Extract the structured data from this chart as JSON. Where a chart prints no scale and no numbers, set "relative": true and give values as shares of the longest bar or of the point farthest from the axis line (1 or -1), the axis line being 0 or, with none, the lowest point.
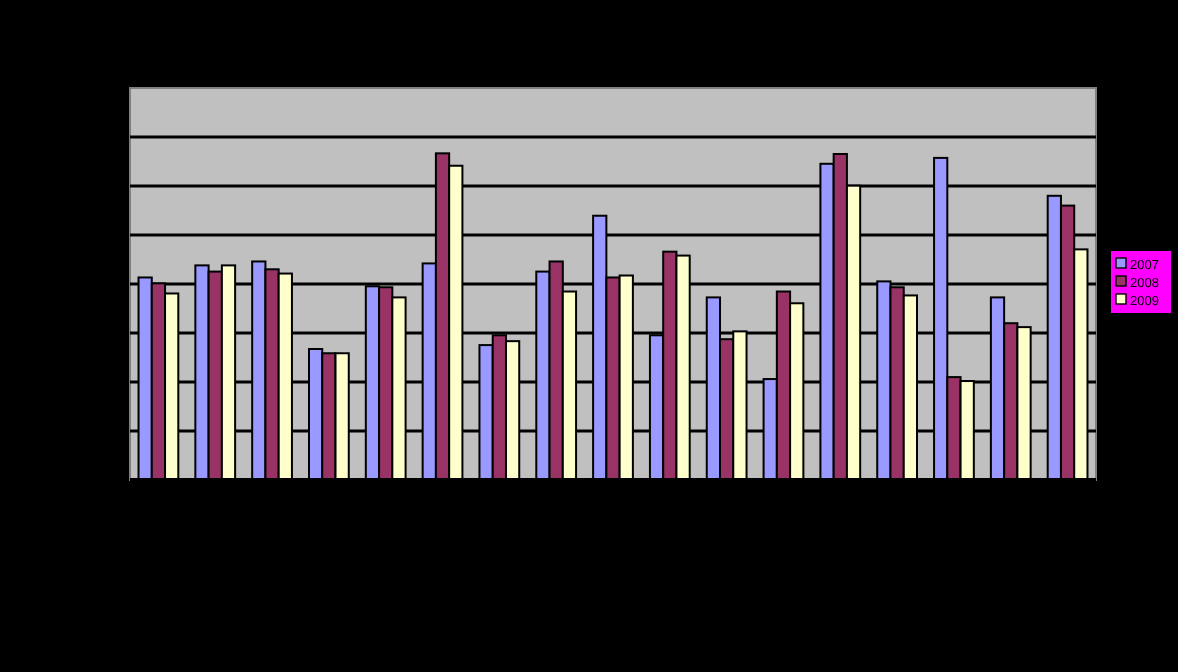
{
  "chart_data": {
    "type": "bar",
    "relative": true,
    "grid": "y",
    "legend": "right",
    "categories": [
      null,
      null,
      null,
      null,
      null,
      null,
      null,
      null,
      null,
      null,
      null,
      null,
      null,
      null,
      null,
      null,
      null
    ],
    "series": [
      {
        "name": "2007",
        "color": "#9999ff",
        "values": [
          0.62,
          0.657,
          0.669,
          0.401,
          0.593,
          0.663,
          0.413,
          0.638,
          0.809,
          0.443,
          0.559,
          0.309,
          0.968,
          0.608,
          0.986,
          0.559,
          0.87
        ]
      },
      {
        "name": "2008",
        "color": "#993366",
        "values": [
          0.602,
          0.638,
          0.645,
          0.388,
          0.59,
          1,
          0.443,
          0.669,
          0.62,
          0.699,
          0.431,
          0.577,
          0.998,
          0.59,
          0.315,
          0.48,
          0.84
        ]
      },
      {
        "name": "2009",
        "color": "#ffffcc",
        "values": [
          0.571,
          0.657,
          0.632,
          0.388,
          0.559,
          0.962,
          0.425,
          0.577,
          0.626,
          0.687,
          0.455,
          0.541,
          0.901,
          0.565,
          0.303,
          0.468,
          0.706
        ]
      }
    ]
  }
}
